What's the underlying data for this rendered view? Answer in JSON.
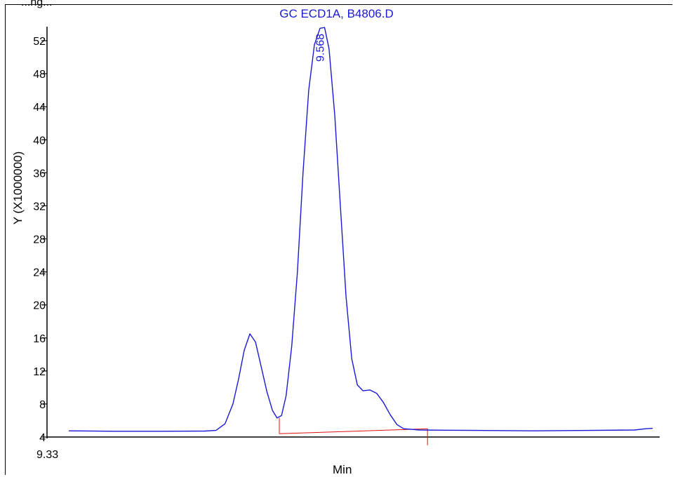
{
  "partial_header": "...ng...",
  "chart_data": {
    "type": "line",
    "title": "GC ECD1A, B4806.D",
    "xlabel": "Min",
    "ylabel": "Y (X1000000)",
    "x_start_label": "9.33",
    "ylim": [
      4,
      54
    ],
    "xlim": [
      9.33,
      9.86
    ],
    "yticks": [
      4,
      8,
      12,
      16,
      20,
      24,
      28,
      32,
      36,
      40,
      44,
      48,
      52
    ],
    "grid": false,
    "colors": {
      "trace": "#1a1ad6",
      "baseline": "#e01010",
      "axis": "#000000"
    },
    "peak_label": {
      "text": "9.568",
      "x": 9.568,
      "y": 53.5
    },
    "series": [
      {
        "values": [
          [
            9.34,
            4.75
          ],
          [
            9.38,
            4.7
          ],
          [
            9.42,
            4.7
          ],
          [
            9.46,
            4.72
          ],
          [
            9.47,
            4.8
          ],
          [
            9.478,
            5.6
          ],
          [
            9.485,
            8.0
          ],
          [
            9.49,
            11.0
          ],
          [
            9.495,
            14.5
          ],
          [
            9.5,
            16.5
          ],
          [
            9.505,
            15.5
          ],
          [
            9.51,
            12.5
          ],
          [
            9.515,
            9.5
          ],
          [
            9.52,
            7.2
          ],
          [
            9.524,
            6.3
          ],
          [
            9.528,
            6.6
          ],
          [
            9.532,
            9.0
          ],
          [
            9.537,
            15.0
          ],
          [
            9.542,
            24.0
          ],
          [
            9.547,
            36.0
          ],
          [
            9.552,
            46.0
          ],
          [
            9.557,
            51.5
          ],
          [
            9.562,
            53.5
          ],
          [
            9.566,
            53.6
          ],
          [
            9.57,
            51.0
          ],
          [
            9.575,
            43.0
          ],
          [
            9.58,
            32.0
          ],
          [
            9.585,
            21.0
          ],
          [
            9.59,
            13.5
          ],
          [
            9.595,
            10.3
          ],
          [
            9.6,
            9.6
          ],
          [
            9.606,
            9.7
          ],
          [
            9.612,
            9.3
          ],
          [
            9.618,
            8.2
          ],
          [
            9.624,
            6.7
          ],
          [
            9.63,
            5.5
          ],
          [
            9.636,
            5.0
          ],
          [
            9.65,
            4.85
          ],
          [
            9.7,
            4.8
          ],
          [
            9.75,
            4.75
          ],
          [
            9.8,
            4.8
          ],
          [
            9.84,
            4.85
          ],
          [
            9.85,
            5.0
          ],
          [
            9.856,
            5.05
          ]
        ]
      }
    ],
    "integration_baseline": {
      "start": {
        "x": 9.526,
        "y": 4.4
      },
      "end": {
        "x": 9.657,
        "y": 5.0
      },
      "start_marker_top": 6.3,
      "end_marker_bottom": 3.0
    }
  }
}
